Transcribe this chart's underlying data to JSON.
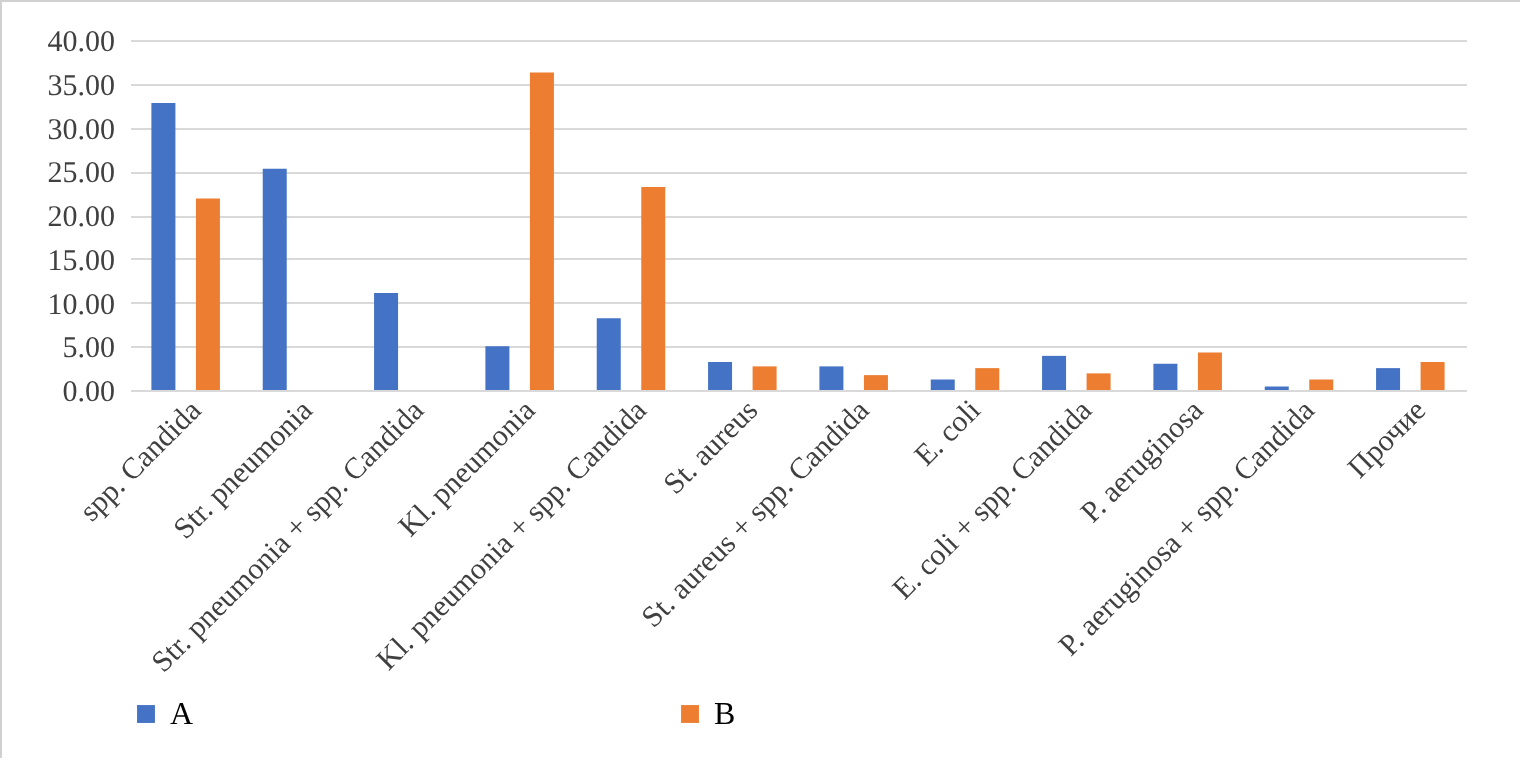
{
  "chart_data": {
    "type": "bar",
    "categories": [
      "spp. Candida",
      "Str. pneumonia",
      "Str. pneumonia + spp. Candida",
      "Kl. pneumonia",
      "Kl. pneumonia + spp. Candida",
      "St. aureus",
      "St. aureus + spp. Candida",
      "E. coli",
      "E. coli + spp. Candida",
      "P. aeruginosa",
      "P. aeruginosa + spp. Candida",
      "Прочие"
    ],
    "series": [
      {
        "name": "A",
        "color": "#4472c4",
        "values": [
          32.8,
          25.3,
          11.1,
          5.0,
          8.2,
          3.2,
          2.7,
          1.2,
          3.9,
          3.0,
          0.4,
          2.5
        ]
      },
      {
        "name": "B",
        "color": "#ed7d31",
        "values": [
          21.9,
          0,
          0,
          36.3,
          23.2,
          2.7,
          1.7,
          2.5,
          1.9,
          4.3,
          1.2,
          3.2
        ]
      }
    ],
    "ylim": [
      0,
      40
    ],
    "yticks": [
      {
        "value": 0,
        "label": "0.00"
      },
      {
        "value": 5,
        "label": "5.00"
      },
      {
        "value": 10,
        "label": "10.00"
      },
      {
        "value": 15,
        "label": "15.00"
      },
      {
        "value": 20,
        "label": "20.00"
      },
      {
        "value": 25,
        "label": "25.00"
      },
      {
        "value": 30,
        "label": "30.00"
      },
      {
        "value": 35,
        "label": "35.00"
      },
      {
        "value": 40,
        "label": "40.00"
      }
    ],
    "grid": "y",
    "legend": "bottom"
  }
}
